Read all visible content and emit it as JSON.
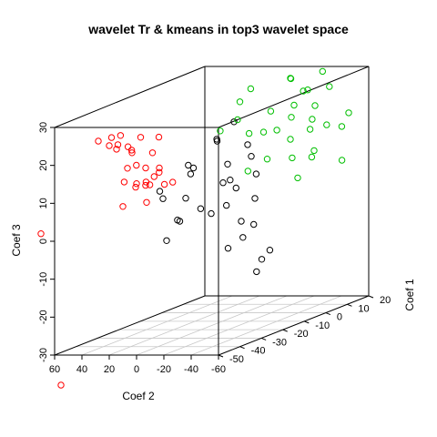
{
  "chart_data": {
    "type": "scatter",
    "title": "wavelet Tr & kmeans in top3 wavelet space",
    "xlabel": "Coef 2",
    "ylabel": "Coef 3",
    "zlabel": "Coef 1",
    "x_ticks": [
      "60",
      "40",
      "20",
      "0",
      "-20",
      "-40",
      "-60"
    ],
    "y_ticks": [
      "-30",
      "-20",
      "-10",
      "0",
      "10",
      "20",
      "30"
    ],
    "z_ticks": [
      "-50",
      "-40",
      "-30",
      "-20",
      "-10",
      "0",
      "10",
      "20"
    ],
    "grid": "bottom floor",
    "series": [
      {
        "color": "#ff0000",
        "points": [
          [
            70,
            2,
            -55
          ],
          [
            72,
            20,
            -25
          ],
          [
            66,
            20,
            -18
          ],
          [
            65,
            18,
            -20
          ],
          [
            55,
            22,
            -30
          ],
          [
            52,
            17,
            -22
          ],
          [
            44,
            20,
            -35
          ],
          [
            42,
            22,
            -40
          ],
          [
            35,
            20,
            -20
          ],
          [
            40,
            18,
            -30
          ],
          [
            41,
            21,
            -25
          ],
          [
            40,
            20,
            -32
          ],
          [
            36,
            15,
            -35
          ],
          [
            34,
            12,
            -38
          ],
          [
            30,
            14,
            -30
          ],
          [
            28,
            8,
            -22
          ],
          [
            30,
            10,
            -35
          ],
          [
            32,
            6,
            -40
          ],
          [
            26,
            12,
            -26
          ],
          [
            25,
            18,
            -30
          ],
          [
            22,
            6,
            -35
          ],
          [
            22,
            12,
            -40
          ],
          [
            20,
            14,
            -30
          ],
          [
            18,
            12,
            -38
          ],
          [
            19,
            9,
            -24
          ],
          [
            15,
            13,
            -36
          ],
          [
            70,
            -40,
            -45
          ],
          [
            33,
            9,
            -28
          ],
          [
            28,
            16,
            -36
          ],
          [
            24,
            10,
            -32
          ]
        ]
      },
      {
        "color": "#000000",
        "points": [
          [
            10,
            7,
            -35
          ],
          [
            5,
            10,
            -40
          ],
          [
            0,
            12,
            -28
          ],
          [
            -5,
            14,
            -30
          ],
          [
            -10,
            16,
            -36
          ],
          [
            -15,
            20,
            -25
          ],
          [
            -20,
            24,
            -20
          ],
          [
            -25,
            22,
            -32
          ],
          [
            -30,
            18,
            -20
          ],
          [
            -40,
            16,
            -25
          ],
          [
            -45,
            10,
            -36
          ],
          [
            -50,
            6,
            -30
          ],
          [
            -55,
            0,
            -34
          ],
          [
            -5,
            2,
            -38
          ],
          [
            0,
            -3,
            -40
          ],
          [
            5,
            0,
            -30
          ],
          [
            8,
            5,
            -25
          ],
          [
            -12,
            8,
            -20
          ],
          [
            -18,
            2,
            -30
          ],
          [
            -22,
            5,
            -38
          ],
          [
            -26,
            10,
            -26
          ],
          [
            -30,
            15,
            -30
          ],
          [
            -35,
            5,
            -34
          ],
          [
            -40,
            0,
            -30
          ],
          [
            -45,
            -5,
            -40
          ],
          [
            -50,
            -3,
            -36
          ],
          [
            -55,
            -10,
            -30
          ],
          [
            -60,
            -12,
            -36
          ],
          [
            -58,
            -8,
            -28
          ],
          [
            -48,
            12,
            -28
          ]
        ]
      },
      {
        "color": "#00bf00",
        "points": [
          [
            -60,
            20,
            10
          ],
          [
            -58,
            8,
            8
          ],
          [
            -52,
            16,
            12
          ],
          [
            -45,
            20,
            2
          ],
          [
            -40,
            22,
            -5
          ],
          [
            -38,
            16,
            14
          ],
          [
            -30,
            26,
            10
          ],
          [
            -25,
            30,
            5
          ],
          [
            -20,
            14,
            18
          ],
          [
            -15,
            10,
            0
          ],
          [
            -10,
            28,
            15
          ],
          [
            -5,
            22,
            -8
          ],
          [
            0,
            20,
            12
          ],
          [
            5,
            25,
            0
          ],
          [
            10,
            15,
            8
          ],
          [
            15,
            18,
            -3
          ],
          [
            -50,
            24,
            0
          ],
          [
            -45,
            12,
            -8
          ],
          [
            -35,
            30,
            14
          ],
          [
            -30,
            8,
            12
          ],
          [
            -25,
            18,
            -2
          ],
          [
            -20,
            22,
            10
          ],
          [
            -15,
            24,
            18
          ],
          [
            -10,
            12,
            15
          ],
          [
            -5,
            16,
            5
          ],
          [
            0,
            28,
            2
          ],
          [
            5,
            6,
            4
          ],
          [
            -40,
            26,
            14
          ],
          [
            -30,
            4,
            5
          ],
          [
            -20,
            8,
            20
          ]
        ]
      }
    ]
  }
}
